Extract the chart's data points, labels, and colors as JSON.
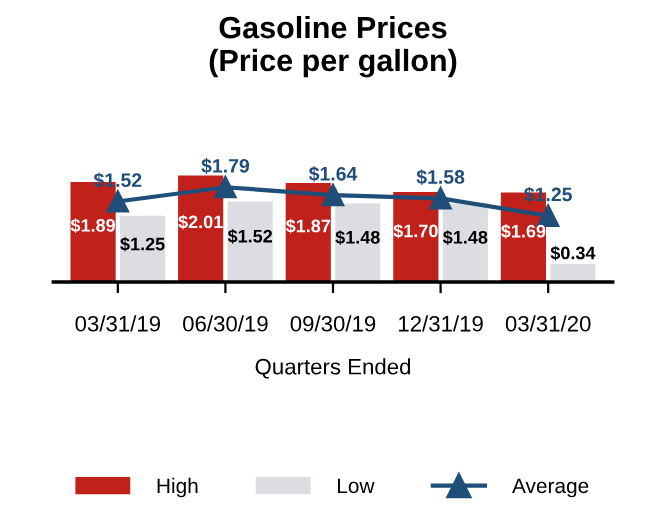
{
  "chart_data": {
    "type": "bar",
    "title": "Gasoline Prices\n(Price per gallon)",
    "xlabel": "Quarters Ended",
    "categories": [
      "03/31/19",
      "06/30/19",
      "09/30/19",
      "12/31/19",
      "03/31/20"
    ],
    "series": [
      {
        "name": "High",
        "color": "#c0211b",
        "values": [
          1.89,
          2.01,
          1.87,
          1.7,
          1.69
        ],
        "value_labels": [
          "$1.89",
          "$2.01",
          "$1.87",
          "$1.70",
          "$1.69"
        ]
      },
      {
        "name": "Low",
        "color": "#dcdde3",
        "values": [
          1.25,
          1.52,
          1.48,
          1.48,
          0.34
        ],
        "value_labels": [
          "$1.25",
          "$1.52",
          "$1.48",
          "$1.48",
          "$0.34"
        ]
      },
      {
        "name": "Average",
        "type": "line",
        "color": "#1f4e79",
        "marker": "triangle",
        "values": [
          1.52,
          1.79,
          1.64,
          1.58,
          1.25
        ],
        "value_labels": [
          "$1.52",
          "$1.79",
          "$1.64",
          "$1.58",
          "$1.25"
        ]
      }
    ],
    "tick_labels": "x",
    "grid": false,
    "legend": "bottom"
  }
}
